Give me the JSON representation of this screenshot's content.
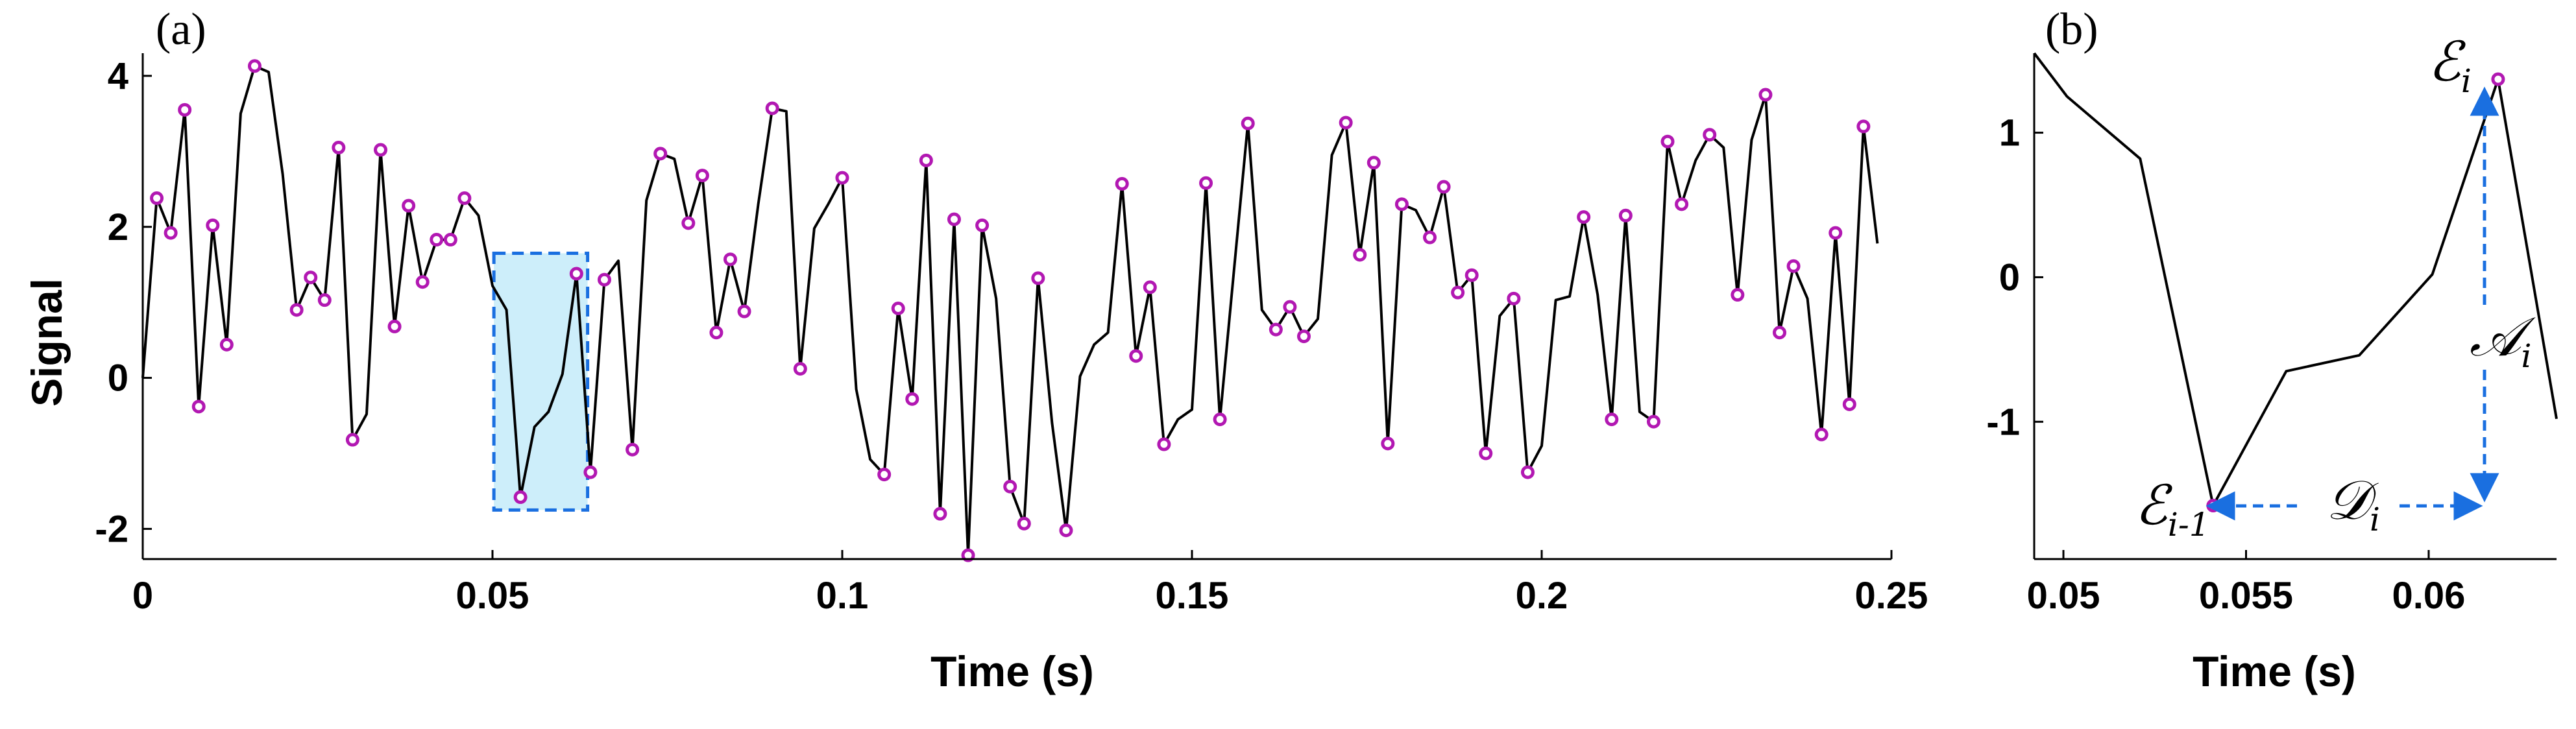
{
  "chart_data": [
    {
      "panel": "(a)",
      "type": "line",
      "xlabel": "Time (s)",
      "ylabel": "Signal",
      "xlim": [
        0,
        0.25
      ],
      "ylim": [
        -2.4,
        4.3
      ],
      "xticks": [
        0,
        0.05,
        0.1,
        0.15,
        0.2,
        0.25
      ],
      "xtick_labels": [
        "0",
        "0.05",
        "0.1",
        "0.15",
        "0.2",
        "0.25"
      ],
      "yticks": [
        -2,
        0,
        2,
        4
      ],
      "ytick_labels": [
        "-2",
        "0",
        "2",
        "4"
      ],
      "grid": false,
      "colors": {
        "line": "#000000",
        "markers": "#b218b2",
        "highlight_fill": "#cdeefa",
        "highlight_border": "#1a6fe0"
      },
      "highlight_window": {
        "x": [
          0.0502,
          0.0636
        ],
        "y": [
          -1.75,
          1.65
        ]
      },
      "series": [
        {
          "x": [
            0,
            0.002,
            0.004,
            0.006,
            0.008,
            0.01,
            0.012,
            0.014,
            0.016,
            0.018,
            0.02,
            0.022,
            0.024,
            0.026,
            0.028,
            0.03,
            0.032,
            0.034,
            0.036,
            0.038,
            0.04,
            0.042,
            0.044,
            0.046,
            0.048,
            0.05,
            0.052,
            0.054,
            0.056,
            0.058,
            0.06,
            0.062,
            0.064,
            0.066,
            0.068,
            0.07,
            0.072,
            0.074,
            0.076,
            0.078,
            0.08,
            0.082,
            0.084,
            0.086,
            0.088,
            0.09,
            0.092,
            0.094,
            0.096,
            0.098,
            0.1,
            0.102,
            0.104,
            0.106,
            0.108,
            0.11,
            0.112,
            0.114,
            0.116,
            0.118,
            0.12,
            0.122,
            0.124,
            0.126,
            0.128,
            0.13,
            0.132,
            0.134,
            0.136,
            0.138,
            0.14,
            0.142,
            0.144,
            0.146,
            0.148,
            0.15,
            0.152,
            0.154,
            0.156,
            0.158,
            0.16,
            0.162,
            0.164,
            0.166,
            0.168,
            0.17,
            0.172,
            0.174,
            0.176,
            0.178,
            0.18,
            0.182,
            0.184,
            0.186,
            0.188,
            0.19,
            0.192,
            0.194,
            0.196,
            0.198,
            0.2,
            0.202,
            0.204,
            0.206,
            0.208,
            0.21,
            0.212,
            0.214,
            0.216,
            0.218,
            0.22,
            0.222,
            0.224,
            0.226,
            0.228,
            0.23,
            0.232,
            0.234,
            0.236,
            0.238,
            0.24,
            0.242,
            0.244,
            0.246,
            0.248
          ],
          "y": [
            0.0,
            2.38,
            1.92,
            3.55,
            -0.38,
            2.02,
            0.44,
            3.5,
            4.13,
            4.05,
            2.7,
            0.9,
            1.33,
            1.03,
            3.05,
            -0.82,
            -0.48,
            3.02,
            0.68,
            2.28,
            1.27,
            1.83,
            1.83,
            2.38,
            2.15,
            1.22,
            0.9,
            -1.58,
            -0.65,
            -0.45,
            0.05,
            1.38,
            -1.25,
            1.3,
            1.55,
            -0.95,
            2.35,
            2.97,
            2.9,
            2.05,
            2.68,
            0.6,
            1.57,
            0.88,
            2.3,
            3.57,
            3.53,
            0.12,
            1.98,
            2.3,
            2.65,
            -0.15,
            -1.08,
            -1.28,
            0.92,
            -0.28,
            2.88,
            -1.8,
            2.1,
            -2.35,
            2.02,
            1.05,
            -1.44,
            -1.93,
            1.32,
            -0.6,
            -2.02,
            0.02,
            0.44,
            0.6,
            2.57,
            0.29,
            1.2,
            -0.88,
            -0.55,
            -0.42,
            2.58,
            -0.55,
            1.42,
            3.37,
            0.9,
            0.64,
            0.94,
            0.55,
            0.78,
            2.95,
            3.38,
            1.63,
            2.85,
            -0.87,
            2.3,
            2.22,
            1.86,
            2.53,
            1.13,
            1.36,
            -1.0,
            0.82,
            1.05,
            -1.25,
            -0.9,
            1.03,
            1.08,
            2.13,
            1.1,
            -0.55,
            2.15,
            -0.45,
            -0.58,
            3.13,
            2.3,
            2.88,
            3.22,
            3.05,
            1.1,
            3.15,
            3.75,
            0.6,
            1.48,
            1.05,
            -0.75,
            1.92,
            -0.35,
            3.33,
            1.78
          ]
        }
      ],
      "marker_indices": [
        1,
        2,
        3,
        4,
        5,
        6,
        8,
        11,
        12,
        13,
        14,
        15,
        17,
        18,
        19,
        20,
        21,
        22,
        23,
        27,
        31,
        32,
        33,
        35,
        37,
        39,
        40,
        41,
        42,
        43,
        45,
        47,
        50,
        53,
        54,
        55,
        56,
        57,
        58,
        59,
        60,
        62,
        63,
        64,
        66,
        70,
        71,
        72,
        73,
        76,
        77,
        79,
        81,
        82,
        83,
        86,
        87,
        88,
        89,
        90,
        92,
        93,
        94,
        95,
        96,
        98,
        99,
        103,
        105,
        106,
        108,
        109,
        110,
        112,
        114,
        116,
        117,
        118,
        120,
        121,
        122,
        123
      ]
    },
    {
      "panel": "(b)",
      "type": "line",
      "xlabel": "Time (s)",
      "xlim": [
        0.0492,
        0.0635
      ],
      "ylim": [
        -1.95,
        1.55
      ],
      "xticks": [
        0.05,
        0.055,
        0.06
      ],
      "xtick_labels": [
        "0.05",
        "0.055",
        "0.06"
      ],
      "yticks": [
        -1,
        0,
        1
      ],
      "ytick_labels": [
        "-1",
        "0",
        "1"
      ],
      "grid": false,
      "series": [
        {
          "x": [
            0.0492,
            0.0501,
            0.0521,
            0.0541,
            0.0561,
            0.0581,
            0.0601,
            0.0619,
            0.0635
          ],
          "y": [
            1.55,
            1.25,
            0.82,
            -1.58,
            -0.65,
            -0.54,
            0.02,
            1.37,
            -0.98
          ]
        }
      ],
      "marker_points": [
        {
          "x": 0.0541,
          "y": -1.58
        },
        {
          "x": 0.0619,
          "y": 1.37
        }
      ],
      "annotations": {
        "peak": {
          "symbol": "ℰ",
          "subscript": "i"
        },
        "trough": {
          "symbol": "ℰ",
          "subscript": "i-1"
        },
        "amplitude": {
          "symbol": "𝒜",
          "subscript": "i"
        },
        "duration": {
          "symbol": "𝒟",
          "subscript": "i"
        }
      }
    }
  ]
}
